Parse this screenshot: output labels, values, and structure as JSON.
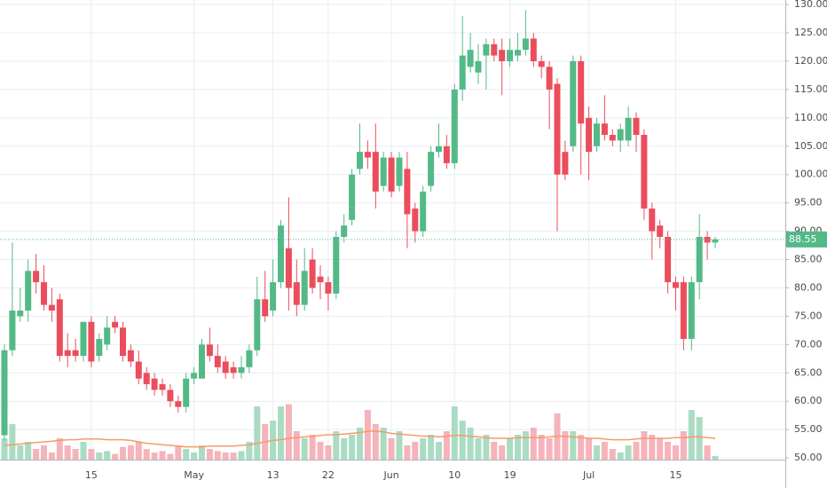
{
  "chart_data": {
    "type": "candlestick",
    "categories": [
      null,
      null,
      null,
      null,
      null,
      null,
      null,
      null,
      null,
      null,
      null,
      "15",
      null,
      null,
      null,
      null,
      null,
      null,
      null,
      null,
      null,
      null,
      null,
      null,
      "May",
      null,
      null,
      null,
      null,
      null,
      null,
      null,
      null,
      null,
      "13",
      null,
      null,
      null,
      null,
      null,
      null,
      "22",
      null,
      null,
      null,
      null,
      null,
      null,
      null,
      "Jun",
      null,
      null,
      null,
      null,
      null,
      null,
      null,
      "10",
      null,
      null,
      null,
      null,
      null,
      null,
      "19",
      null,
      null,
      null,
      null,
      null,
      null,
      null,
      null,
      null,
      "Jul",
      null,
      null,
      null,
      null,
      null,
      null,
      null,
      null,
      null,
      null,
      "15",
      null,
      null,
      null,
      null,
      null
    ],
    "open": [
      54,
      69,
      75,
      76,
      83,
      81,
      77,
      78,
      69,
      69,
      68,
      74,
      68,
      70,
      74,
      73,
      69,
      67,
      65,
      64,
      63,
      62,
      60,
      59,
      64,
      64,
      70,
      68,
      67,
      66,
      65,
      66,
      69,
      78,
      76,
      81,
      87,
      81,
      77,
      85,
      82,
      81,
      79,
      89,
      92,
      101,
      104,
      104,
      98,
      103,
      98,
      101,
      94,
      90,
      98,
      104,
      105,
      102,
      115,
      119,
      118,
      121,
      123,
      122,
      120,
      121,
      122,
      124,
      120,
      119,
      116,
      104,
      105,
      120,
      110,
      105,
      109,
      107,
      106,
      106,
      110,
      107,
      94,
      91,
      89,
      81,
      81,
      71,
      81,
      89,
      88
    ],
    "high": [
      70,
      88,
      80,
      85,
      86,
      84,
      80,
      79,
      72,
      71,
      74,
      75,
      72,
      75,
      75,
      74,
      70,
      69,
      66,
      65,
      64,
      63,
      61,
      65,
      66,
      71,
      73,
      70,
      68,
      67,
      68,
      70,
      82,
      83,
      85,
      92,
      96,
      85,
      87,
      87,
      84,
      82,
      90,
      93,
      101,
      109,
      106,
      109,
      104,
      104,
      104,
      104,
      95,
      98,
      105,
      109,
      107,
      116,
      128,
      125,
      123,
      124,
      124,
      124,
      124,
      125,
      129,
      125,
      121,
      120,
      117,
      106,
      121,
      121,
      112,
      110,
      114,
      108,
      109,
      112,
      111,
      108,
      95,
      92,
      90,
      82,
      82,
      82,
      93,
      90,
      89
    ],
    "low": [
      53,
      68,
      74,
      74,
      79,
      76,
      74,
      67,
      66,
      67,
      67,
      66,
      67,
      69,
      72,
      67,
      66,
      63,
      62,
      61,
      61,
      59,
      58,
      58,
      63,
      64,
      67,
      65,
      64,
      64,
      64,
      65,
      68,
      74,
      75,
      80,
      76,
      75,
      76,
      79,
      78,
      76,
      78,
      88,
      91,
      100,
      101,
      94,
      97,
      96,
      97,
      87,
      88,
      89,
      97,
      103,
      101,
      101,
      113,
      118,
      116,
      115,
      120,
      114,
      119,
      120,
      121,
      119,
      117,
      108,
      90,
      99,
      104,
      100,
      99,
      104,
      106,
      105,
      104,
      105,
      104,
      92,
      85,
      87,
      79,
      76,
      69,
      69,
      78,
      85,
      87
    ],
    "close": [
      69,
      76,
      76,
      83,
      81,
      77,
      76,
      68,
      68,
      68,
      74,
      67,
      71,
      73,
      73,
      68,
      67,
      64,
      63,
      62,
      62,
      60,
      59,
      64,
      65,
      70,
      68,
      66,
      65,
      65,
      66,
      69,
      78,
      75,
      81,
      91,
      80,
      77,
      83,
      80,
      81,
      79,
      89,
      91,
      100,
      104,
      103,
      97,
      103,
      97,
      103,
      93,
      90,
      97,
      104,
      105,
      102,
      115,
      121,
      122,
      120,
      123,
      121,
      120,
      122,
      122,
      124,
      120,
      119,
      115,
      100,
      100,
      120,
      109,
      104,
      109,
      107,
      106,
      108,
      110,
      107,
      94,
      90,
      89,
      81,
      80,
      71,
      81,
      89,
      88,
      88.55
    ],
    "volume": [
      30,
      50,
      20,
      25,
      15,
      20,
      10,
      30,
      20,
      15,
      25,
      15,
      10,
      12,
      8,
      18,
      20,
      25,
      15,
      10,
      12,
      8,
      20,
      15,
      10,
      20,
      15,
      12,
      10,
      10,
      12,
      25,
      75,
      50,
      55,
      75,
      78,
      40,
      30,
      35,
      25,
      20,
      40,
      30,
      35,
      45,
      70,
      50,
      45,
      30,
      40,
      20,
      25,
      30,
      35,
      25,
      40,
      75,
      55,
      45,
      30,
      35,
      25,
      20,
      30,
      35,
      40,
      45,
      35,
      30,
      65,
      40,
      40,
      35,
      30,
      20,
      25,
      15,
      10,
      20,
      25,
      40,
      35,
      30,
      25,
      20,
      40,
      70,
      60,
      20,
      5
    ],
    "volume_ma": [
      20,
      21,
      22,
      23,
      24,
      25,
      26,
      27,
      28,
      28,
      29,
      29,
      29,
      28,
      28,
      28,
      27,
      25,
      23,
      22,
      21,
      20,
      19,
      18,
      18,
      18,
      19,
      19,
      19,
      19,
      20,
      21,
      23,
      25,
      27,
      28,
      30,
      31,
      32,
      33,
      34,
      35,
      35,
      36,
      37,
      38,
      40,
      40,
      39,
      37,
      36,
      35,
      34,
      33,
      33,
      32,
      33,
      34,
      34,
      33,
      32,
      31,
      30,
      30,
      30,
      31,
      31,
      31,
      31,
      32,
      33,
      33,
      32,
      31,
      30,
      30,
      29,
      28,
      28,
      28,
      29,
      30,
      30,
      30,
      30,
      31,
      31,
      32,
      32,
      31,
      30
    ],
    "volume_lim": [
      0,
      125
    ],
    "up_color": "#53b987",
    "down_color": "#eb4d5c",
    "volume_up_color": "#a9dcc3",
    "volume_down_color": "#f5b3ba",
    "ma_color": "#f79a6b",
    "last_price": 88.55,
    "ylim": [
      49.7,
      130.8
    ],
    "yticks": [
      {
        "value": 50,
        "label": "50.00"
      },
      {
        "value": 55,
        "label": "55.00"
      },
      {
        "value": 60,
        "label": "60.00"
      },
      {
        "value": 65,
        "label": "65.00"
      },
      {
        "value": 70,
        "label": "70.00"
      },
      {
        "value": 75,
        "label": "75.00"
      },
      {
        "value": 80,
        "label": "80.00"
      },
      {
        "value": 85,
        "label": "85.00"
      },
      {
        "value": 90,
        "label": "90.00"
      },
      {
        "value": 95,
        "label": "95.00"
      },
      {
        "value": 100,
        "label": "100.00"
      },
      {
        "value": 105,
        "label": "105.00"
      },
      {
        "value": 110,
        "label": "110.00"
      },
      {
        "value": 115,
        "label": "115.00"
      },
      {
        "value": 120,
        "label": "120.00"
      },
      {
        "value": 125,
        "label": "125.00"
      },
      {
        "value": 130,
        "label": "130.00"
      }
    ],
    "grid": true
  }
}
